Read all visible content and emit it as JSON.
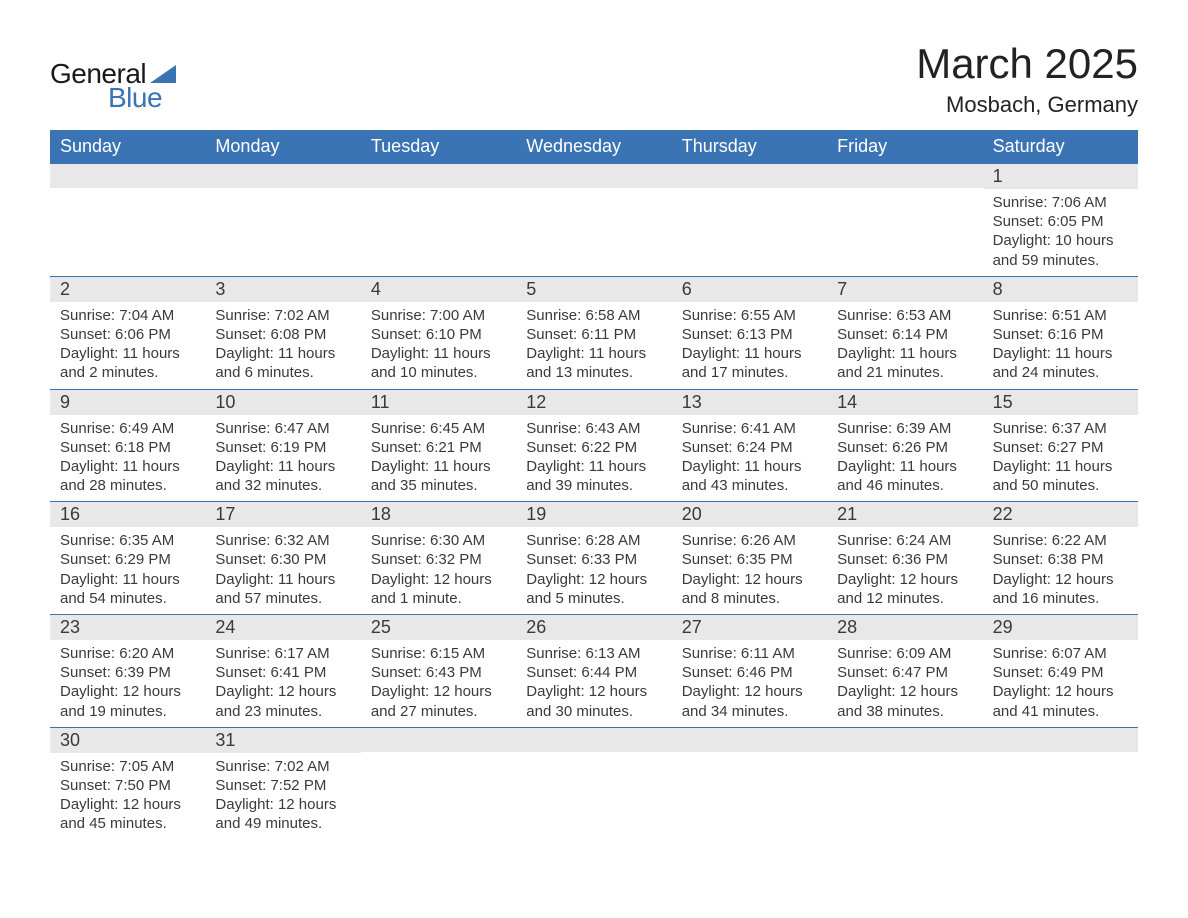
{
  "logo": {
    "text1": "General",
    "text2": "Blue",
    "triangle_color": "#3b74b4"
  },
  "title": "March 2025",
  "subtitle": "Mosbach, Germany",
  "colors": {
    "header_bg": "#3b74b4",
    "header_text": "#ffffff",
    "daynum_bg": "#e8e8e8",
    "text": "#3a3a3a",
    "row_border": "#3b74b4",
    "page_bg": "#ffffff"
  },
  "weekdays": [
    "Sunday",
    "Monday",
    "Tuesday",
    "Wednesday",
    "Thursday",
    "Friday",
    "Saturday"
  ],
  "weeks": [
    [
      {
        "num": "",
        "lines": []
      },
      {
        "num": "",
        "lines": []
      },
      {
        "num": "",
        "lines": []
      },
      {
        "num": "",
        "lines": []
      },
      {
        "num": "",
        "lines": []
      },
      {
        "num": "",
        "lines": []
      },
      {
        "num": "1",
        "lines": [
          "Sunrise: 7:06 AM",
          "Sunset: 6:05 PM",
          "Daylight: 10 hours and 59 minutes."
        ]
      }
    ],
    [
      {
        "num": "2",
        "lines": [
          "Sunrise: 7:04 AM",
          "Sunset: 6:06 PM",
          "Daylight: 11 hours and 2 minutes."
        ]
      },
      {
        "num": "3",
        "lines": [
          "Sunrise: 7:02 AM",
          "Sunset: 6:08 PM",
          "Daylight: 11 hours and 6 minutes."
        ]
      },
      {
        "num": "4",
        "lines": [
          "Sunrise: 7:00 AM",
          "Sunset: 6:10 PM",
          "Daylight: 11 hours and 10 minutes."
        ]
      },
      {
        "num": "5",
        "lines": [
          "Sunrise: 6:58 AM",
          "Sunset: 6:11 PM",
          "Daylight: 11 hours and 13 minutes."
        ]
      },
      {
        "num": "6",
        "lines": [
          "Sunrise: 6:55 AM",
          "Sunset: 6:13 PM",
          "Daylight: 11 hours and 17 minutes."
        ]
      },
      {
        "num": "7",
        "lines": [
          "Sunrise: 6:53 AM",
          "Sunset: 6:14 PM",
          "Daylight: 11 hours and 21 minutes."
        ]
      },
      {
        "num": "8",
        "lines": [
          "Sunrise: 6:51 AM",
          "Sunset: 6:16 PM",
          "Daylight: 11 hours and 24 minutes."
        ]
      }
    ],
    [
      {
        "num": "9",
        "lines": [
          "Sunrise: 6:49 AM",
          "Sunset: 6:18 PM",
          "Daylight: 11 hours and 28 minutes."
        ]
      },
      {
        "num": "10",
        "lines": [
          "Sunrise: 6:47 AM",
          "Sunset: 6:19 PM",
          "Daylight: 11 hours and 32 minutes."
        ]
      },
      {
        "num": "11",
        "lines": [
          "Sunrise: 6:45 AM",
          "Sunset: 6:21 PM",
          "Daylight: 11 hours and 35 minutes."
        ]
      },
      {
        "num": "12",
        "lines": [
          "Sunrise: 6:43 AM",
          "Sunset: 6:22 PM",
          "Daylight: 11 hours and 39 minutes."
        ]
      },
      {
        "num": "13",
        "lines": [
          "Sunrise: 6:41 AM",
          "Sunset: 6:24 PM",
          "Daylight: 11 hours and 43 minutes."
        ]
      },
      {
        "num": "14",
        "lines": [
          "Sunrise: 6:39 AM",
          "Sunset: 6:26 PM",
          "Daylight: 11 hours and 46 minutes."
        ]
      },
      {
        "num": "15",
        "lines": [
          "Sunrise: 6:37 AM",
          "Sunset: 6:27 PM",
          "Daylight: 11 hours and 50 minutes."
        ]
      }
    ],
    [
      {
        "num": "16",
        "lines": [
          "Sunrise: 6:35 AM",
          "Sunset: 6:29 PM",
          "Daylight: 11 hours and 54 minutes."
        ]
      },
      {
        "num": "17",
        "lines": [
          "Sunrise: 6:32 AM",
          "Sunset: 6:30 PM",
          "Daylight: 11 hours and 57 minutes."
        ]
      },
      {
        "num": "18",
        "lines": [
          "Sunrise: 6:30 AM",
          "Sunset: 6:32 PM",
          "Daylight: 12 hours and 1 minute."
        ]
      },
      {
        "num": "19",
        "lines": [
          "Sunrise: 6:28 AM",
          "Sunset: 6:33 PM",
          "Daylight: 12 hours and 5 minutes."
        ]
      },
      {
        "num": "20",
        "lines": [
          "Sunrise: 6:26 AM",
          "Sunset: 6:35 PM",
          "Daylight: 12 hours and 8 minutes."
        ]
      },
      {
        "num": "21",
        "lines": [
          "Sunrise: 6:24 AM",
          "Sunset: 6:36 PM",
          "Daylight: 12 hours and 12 minutes."
        ]
      },
      {
        "num": "22",
        "lines": [
          "Sunrise: 6:22 AM",
          "Sunset: 6:38 PM",
          "Daylight: 12 hours and 16 minutes."
        ]
      }
    ],
    [
      {
        "num": "23",
        "lines": [
          "Sunrise: 6:20 AM",
          "Sunset: 6:39 PM",
          "Daylight: 12 hours and 19 minutes."
        ]
      },
      {
        "num": "24",
        "lines": [
          "Sunrise: 6:17 AM",
          "Sunset: 6:41 PM",
          "Daylight: 12 hours and 23 minutes."
        ]
      },
      {
        "num": "25",
        "lines": [
          "Sunrise: 6:15 AM",
          "Sunset: 6:43 PM",
          "Daylight: 12 hours and 27 minutes."
        ]
      },
      {
        "num": "26",
        "lines": [
          "Sunrise: 6:13 AM",
          "Sunset: 6:44 PM",
          "Daylight: 12 hours and 30 minutes."
        ]
      },
      {
        "num": "27",
        "lines": [
          "Sunrise: 6:11 AM",
          "Sunset: 6:46 PM",
          "Daylight: 12 hours and 34 minutes."
        ]
      },
      {
        "num": "28",
        "lines": [
          "Sunrise: 6:09 AM",
          "Sunset: 6:47 PM",
          "Daylight: 12 hours and 38 minutes."
        ]
      },
      {
        "num": "29",
        "lines": [
          "Sunrise: 6:07 AM",
          "Sunset: 6:49 PM",
          "Daylight: 12 hours and 41 minutes."
        ]
      }
    ],
    [
      {
        "num": "30",
        "lines": [
          "Sunrise: 7:05 AM",
          "Sunset: 7:50 PM",
          "Daylight: 12 hours and 45 minutes."
        ]
      },
      {
        "num": "31",
        "lines": [
          "Sunrise: 7:02 AM",
          "Sunset: 7:52 PM",
          "Daylight: 12 hours and 49 minutes."
        ]
      },
      {
        "num": "",
        "lines": []
      },
      {
        "num": "",
        "lines": []
      },
      {
        "num": "",
        "lines": []
      },
      {
        "num": "",
        "lines": []
      },
      {
        "num": "",
        "lines": []
      }
    ]
  ]
}
